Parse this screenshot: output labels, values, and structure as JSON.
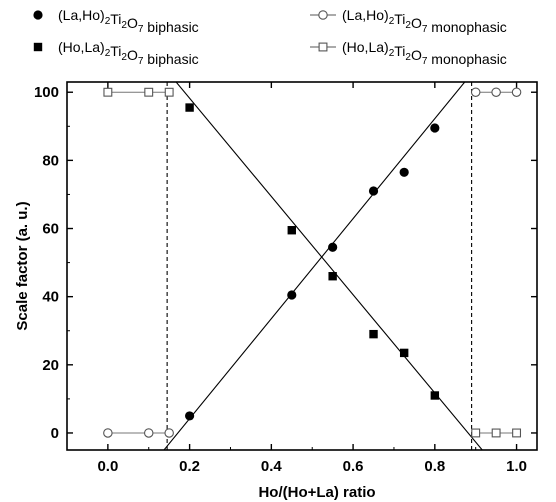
{
  "chart_data": {
    "type": "scatter",
    "xlabel": "Ho/(Ho+La) ratio",
    "ylabel": "Scale factor (a. u.)",
    "xlim": [
      -0.1,
      1.05
    ],
    "ylim": [
      -5,
      103
    ],
    "x_ticks": [
      0.0,
      0.2,
      0.4,
      0.6,
      0.8,
      1.0
    ],
    "x_tick_labels": [
      "0.0",
      "0.2",
      "0.4",
      "0.6",
      "0.8",
      "1.0"
    ],
    "y_ticks": [
      0,
      20,
      40,
      60,
      80,
      100
    ],
    "y_tick_labels": [
      "0",
      "20",
      "40",
      "60",
      "80",
      "100"
    ],
    "grid": false,
    "legend_position": "top",
    "legend": [
      {
        "series": "la_ho_biphasic",
        "prefix": "(La,Ho)",
        "sub1": "2",
        "mid": "Ti",
        "sub2": "2",
        "mid2": "O",
        "sub3": "7",
        "suffix": " biphasic",
        "marker": "circle-filled"
      },
      {
        "series": "la_ho_monophasic",
        "prefix": "(La,Ho)",
        "sub1": "2",
        "mid": "Ti",
        "sub2": "2",
        "mid2": "O",
        "sub3": "7",
        "suffix": " monophasic",
        "marker": "circle-open-line"
      },
      {
        "series": "ho_la_biphasic",
        "prefix": "(Ho,La)",
        "sub1": "2",
        "mid": "Ti",
        "sub2": "2",
        "mid2": "O",
        "sub3": "7",
        "suffix": " biphasic",
        "marker": "square-filled"
      },
      {
        "series": "ho_la_monophasic",
        "prefix": "(Ho,La)",
        "sub1": "2",
        "mid": "Ti",
        "sub2": "2",
        "mid2": "O",
        "sub3": "7",
        "suffix": " monophasic",
        "marker": "square-open-line"
      }
    ],
    "series": [
      {
        "id": "la_ho_biphasic",
        "marker": "circle-filled",
        "x": [
          0.2,
          0.45,
          0.55,
          0.65,
          0.725,
          0.8
        ],
        "y": [
          5,
          40.5,
          54.5,
          71,
          76.5,
          89.5
        ]
      },
      {
        "id": "ho_la_biphasic",
        "marker": "square-filled",
        "x": [
          0.2,
          0.45,
          0.55,
          0.65,
          0.725,
          0.8
        ],
        "y": [
          95.5,
          59.5,
          46,
          29,
          23.5,
          11
        ]
      },
      {
        "id": "la_ho_monophasic_left",
        "marker": "circle-open-line",
        "x": [
          0.0,
          0.1,
          0.15
        ],
        "y": [
          0,
          0,
          0
        ]
      },
      {
        "id": "la_ho_monophasic_right",
        "marker": "circle-open-line",
        "x": [
          0.9,
          0.95,
          1.0
        ],
        "y": [
          100,
          100,
          100
        ]
      },
      {
        "id": "ho_la_monophasic_left",
        "marker": "square-open-line",
        "x": [
          0.0,
          0.1,
          0.15
        ],
        "y": [
          100,
          100,
          100
        ]
      },
      {
        "id": "ho_la_monophasic_right",
        "marker": "square-open-line",
        "x": [
          0.9,
          0.95,
          1.0
        ],
        "y": [
          0,
          0,
          0
        ]
      }
    ],
    "fit_lines": [
      {
        "id": "la_ho_fit",
        "x": [
          0.11,
          0.955
        ],
        "y": [
          -9,
          115
        ]
      },
      {
        "id": "ho_la_fit",
        "x": [
          0.16,
          0.93
        ],
        "y": [
          104,
          -7
        ]
      }
    ],
    "vertical_lines": [
      {
        "id": "left-boundary",
        "x": 0.145,
        "style": "dashed"
      },
      {
        "id": "right-boundary",
        "x": 0.89,
        "style": "dashed"
      }
    ]
  }
}
